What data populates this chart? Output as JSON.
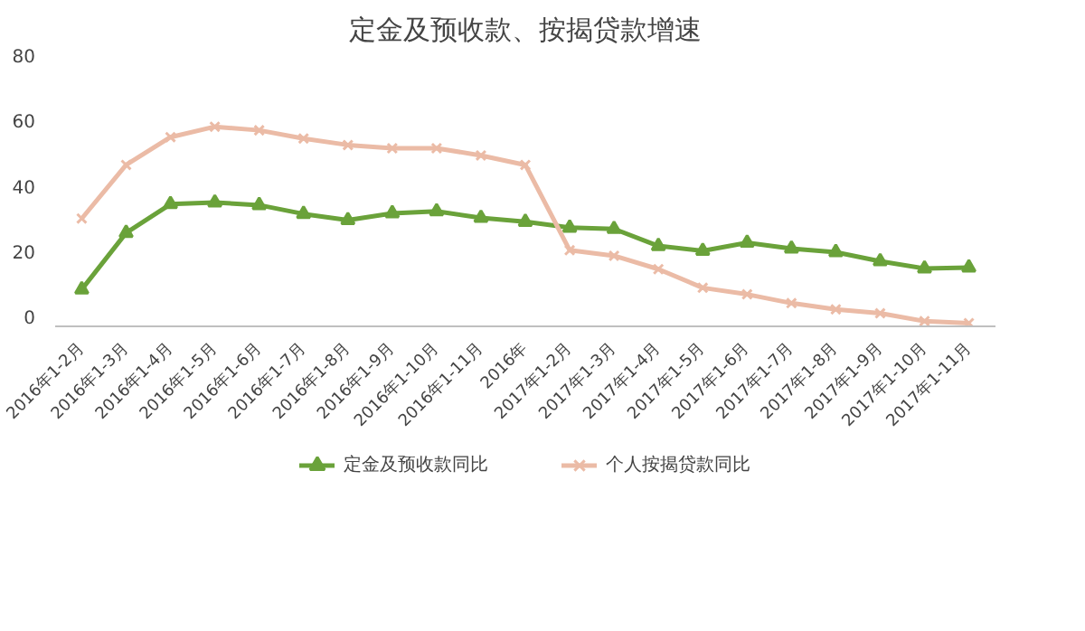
{
  "chart_data": {
    "type": "line",
    "title": "定金及预收款、按揭贷款增速",
    "categories": [
      "2016年1-2月",
      "2016年1-3月",
      "2016年1-4月",
      "2016年1-5月",
      "2016年1-6月",
      "2016年1-7月",
      "2016年1-8月",
      "2016年1-9月",
      "2016年1-10月",
      "2016年1-11月",
      "2016年",
      "2017年1-2月",
      "2017年1-3月",
      "2017年1-4月",
      "2017年1-5月",
      "2017年1-6月",
      "2017年1-7月",
      "2017年1-8月",
      "2017年1-9月",
      "2017年1-10月",
      "2017年1-11月"
    ],
    "series": [
      {
        "name": "定金及预收款同比",
        "color": "#6aa23a",
        "marker": "triangle",
        "values": [
          8.3,
          25.6,
          34.4,
          34.9,
          34.1,
          31.4,
          29.5,
          31.6,
          32.2,
          30.2,
          29.0,
          27.2,
          26.8,
          21.6,
          20.1,
          22.6,
          20.8,
          19.7,
          16.9,
          14.7,
          15.0
        ]
      },
      {
        "name": "个人按揭贷款同比",
        "color": "#ebbba6",
        "marker": "cross",
        "values": [
          30.0,
          46.4,
          54.9,
          58.1,
          57.0,
          54.5,
          52.5,
          51.5,
          51.5,
          49.3,
          46.4,
          20.3,
          18.6,
          14.5,
          8.8,
          6.8,
          4.1,
          2.2,
          1.0,
          -1.4,
          -2.0
        ]
      }
    ],
    "ylim": [
      -3,
      80
    ],
    "yticks": [
      0,
      20,
      40,
      60,
      80
    ],
    "grid": false,
    "legend": "bottom"
  }
}
